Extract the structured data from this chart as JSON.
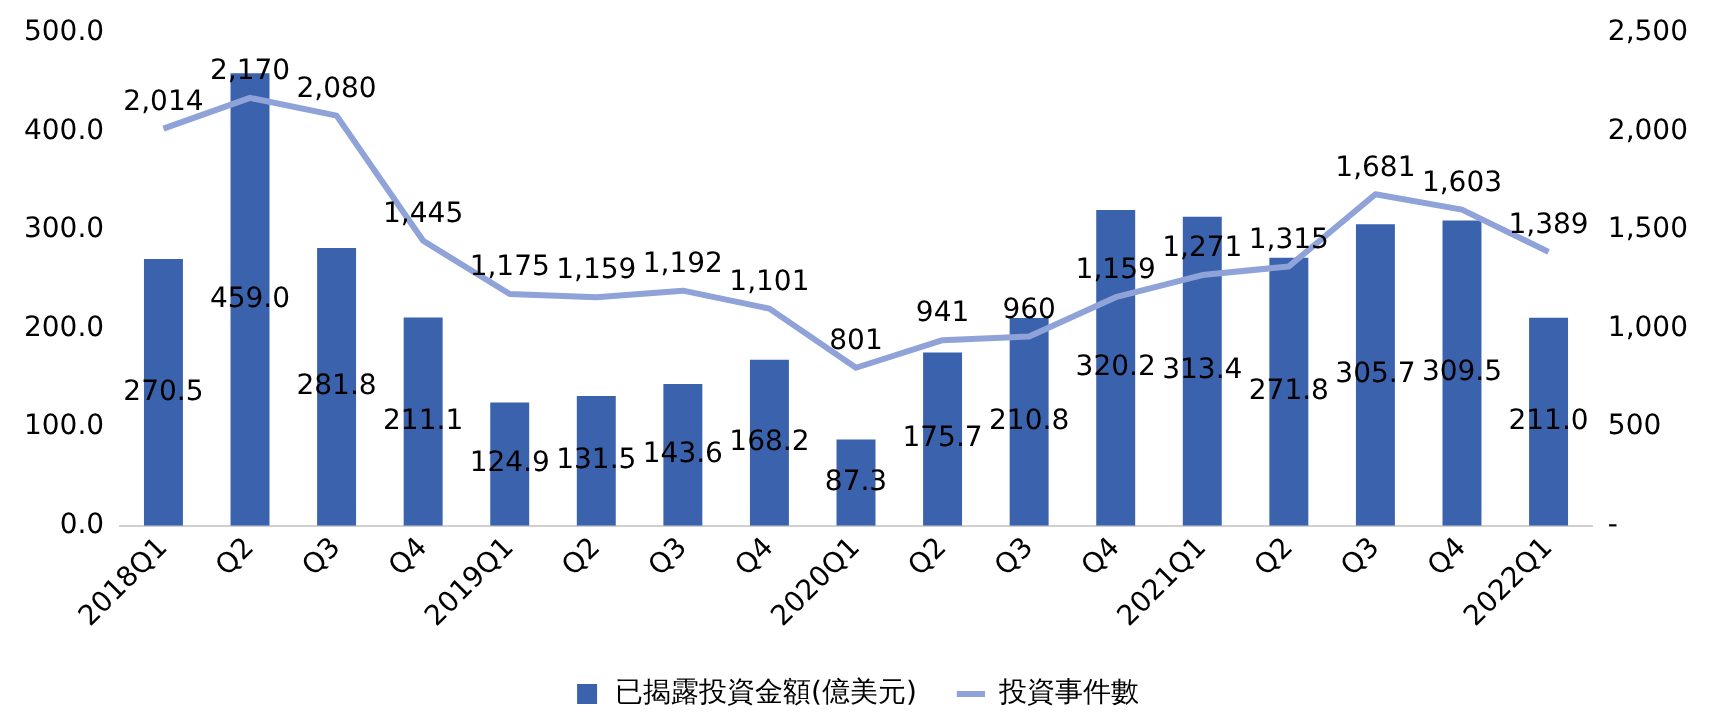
{
  "chart_data": {
    "type": "bar",
    "categories": [
      "2018Q1",
      "Q2",
      "Q3",
      "Q4",
      "2019Q1",
      "Q2",
      "Q3",
      "Q4",
      "2020Q1",
      "Q2",
      "Q3",
      "Q4",
      "2021Q1",
      "Q2",
      "Q3",
      "Q4",
      "2022Q1"
    ],
    "series": [
      {
        "name": "已揭露投資金額(億美元)",
        "color": "#3a62ad",
        "values": [
          270.5,
          459.0,
          281.8,
          211.1,
          124.9,
          131.5,
          143.6,
          168.2,
          87.3,
          175.7,
          210.8,
          320.2,
          313.4,
          271.8,
          305.7,
          309.5,
          211.0
        ],
        "value_labels": [
          "270.5",
          "459.0",
          "281.8",
          "211.1",
          "124.9",
          "131.5",
          "143.6",
          "168.2",
          "87.3",
          "175.7",
          "210.8",
          "320.2",
          "313.4",
          "271.8",
          "305.7",
          "309.5",
          "211.0"
        ]
      },
      {
        "name": "投資事件數",
        "type": "line",
        "axis": "y2",
        "color": "#8fa3d8",
        "values": [
          2014,
          2170,
          2080,
          1445,
          1175,
          1159,
          1192,
          1101,
          801,
          941,
          960,
          1159,
          1271,
          1315,
          1681,
          1603,
          1389
        ],
        "value_labels": [
          "2,014",
          "2,170",
          "2,080",
          "1,445",
          "1,175",
          "1,159",
          "1,192",
          "1,101",
          "801",
          "941",
          "960",
          "1,159",
          "1,271",
          "1,315",
          "1,681",
          "1,603",
          "1,389"
        ]
      }
    ],
    "ylim": [
      0,
      500
    ],
    "yticks": [
      {
        "value": 0,
        "label": "0.0"
      },
      {
        "value": 100,
        "label": "100.0"
      },
      {
        "value": 200,
        "label": "200.0"
      },
      {
        "value": 300,
        "label": "300.0"
      },
      {
        "value": 400,
        "label": "400.0"
      },
      {
        "value": 500,
        "label": "500.0"
      }
    ],
    "y2lim": [
      0,
      2500
    ],
    "y2ticks": [
      {
        "value": 0,
        "label": "-"
      },
      {
        "value": 500,
        "label": "500"
      },
      {
        "value": 1000,
        "label": "1,000"
      },
      {
        "value": 1500,
        "label": "1,500"
      },
      {
        "value": 2000,
        "label": "2,000"
      },
      {
        "value": 2500,
        "label": "2,500"
      }
    ],
    "grid": false,
    "legend": "bottom",
    "marker": "none"
  }
}
